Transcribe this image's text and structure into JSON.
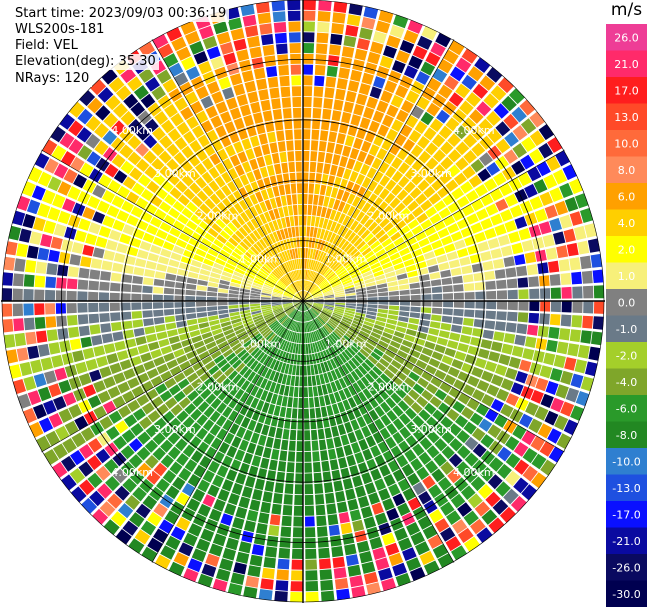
{
  "info": {
    "start_time": "Start time: 2023/09/03 00:36:19",
    "instrument": "WLS200s-181",
    "field": "Field: VEL",
    "elevation": "Elevation(deg): 35.30",
    "nrays": "NRays: 120"
  },
  "colorbar": {
    "unit": "m/s",
    "ticks": [
      "26.0",
      "21.0",
      "17.0",
      "13.0",
      "10.0",
      "8.0",
      "6.0",
      "4.0",
      "2.0",
      "1.0",
      "0.0",
      "-1.0",
      "-2.0",
      "-4.0",
      "-6.0",
      "-8.0",
      "-10.0",
      "-13.0",
      "-17.0",
      "-21.0",
      "-26.0",
      "-30.0"
    ],
    "colors": [
      "#ee3d96",
      "#ff2a6a",
      "#ff1e1e",
      "#ff4a28",
      "#ff6a3a",
      "#ff8a5a",
      "#ffa000",
      "#ffcf00",
      "#ffff00",
      "#f7f07a",
      "#808080",
      "#6a7a88",
      "#a4cf2a",
      "#7fa62a",
      "#2a9a2a",
      "#228822",
      "#2f7fd0",
      "#1e50e0",
      "#0a10ff",
      "#0a0aa0",
      "#0a0a60",
      "#000050"
    ]
  },
  "chart_data": {
    "type": "heatmap",
    "projection": "polar-ppi",
    "n_rays": 120,
    "range_rings_km": [
      1,
      2,
      3,
      4
    ],
    "ring_labels": [
      "1.00km",
      "2.00km",
      "3.00km",
      "4.00km"
    ],
    "max_range_km": 5,
    "value_range": [
      -30,
      26
    ],
    "unit": "m/s",
    "pattern": "northward flow: positive velocities (warm) toward north, negative (cool) toward south, noisy outer gates"
  }
}
